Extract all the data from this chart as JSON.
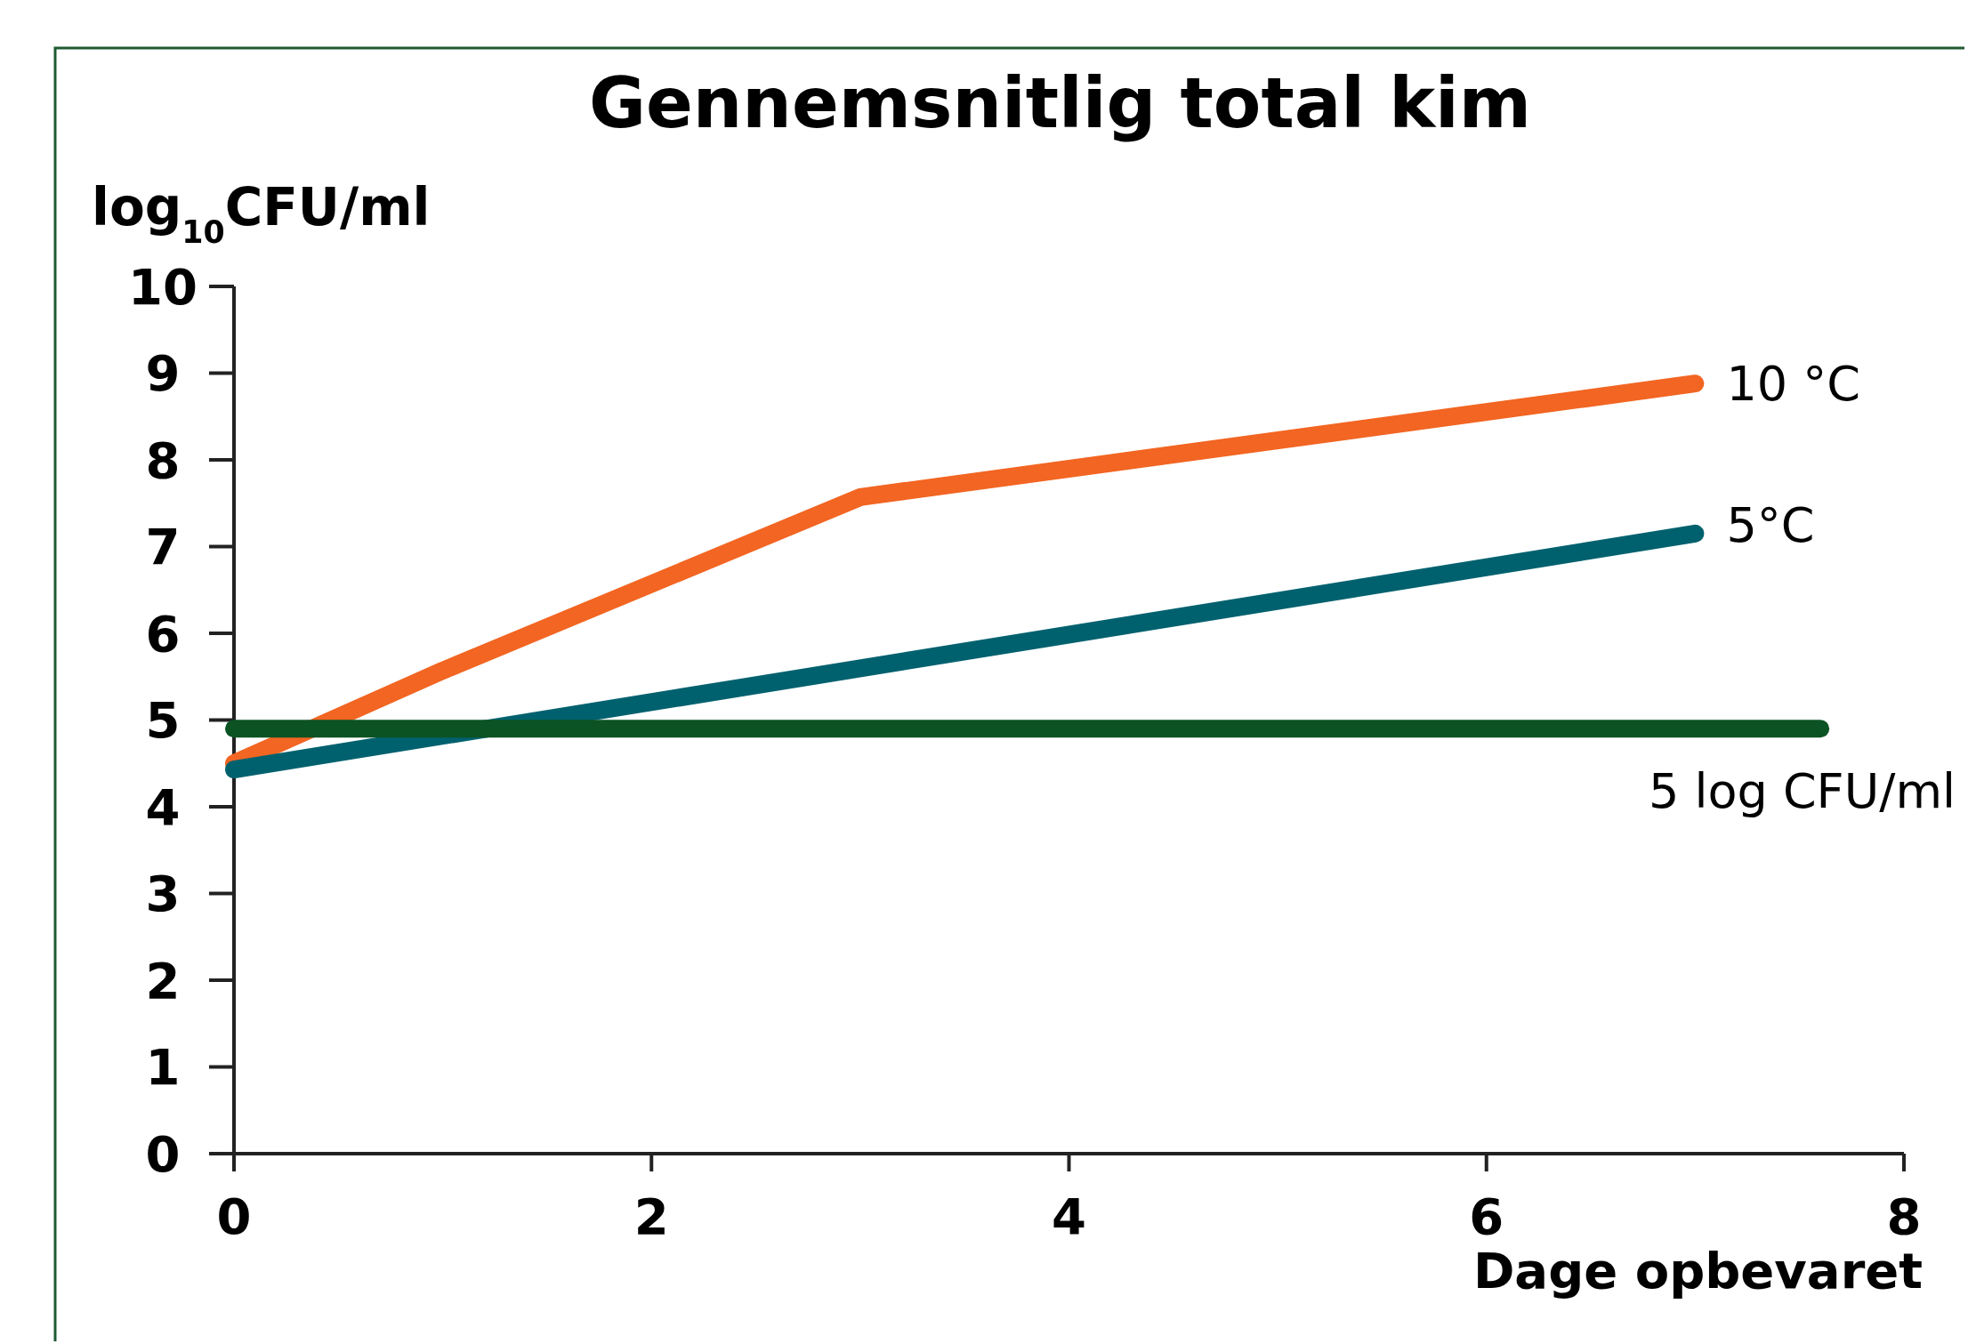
{
  "chart_data": {
    "type": "line",
    "title": "Gennemsnitlig total kim",
    "xlabel": "Dage opbevaret",
    "ylabel": "log$_{10}$CFU/ml",
    "xlim": [
      0,
      8
    ],
    "xticks": [
      0,
      2,
      4,
      6,
      8
    ],
    "ylim": [
      0,
      10
    ],
    "yticks": [
      0,
      1,
      2,
      3,
      4,
      5,
      6,
      7,
      8,
      9,
      10
    ],
    "grid": false,
    "marker": "none",
    "line_style": "solid",
    "series": [
      {
        "name": "10 °C",
        "color": "#f26522",
        "x": [
          0,
          1,
          3,
          7
        ],
        "values": [
          4.5,
          5.57,
          7.57,
          8.88
        ]
      },
      {
        "name": "5°C",
        "color": "#00616e",
        "x": [
          0,
          7
        ],
        "values": [
          4.43,
          7.15
        ]
      },
      {
        "name": "5 log CFU/ml",
        "color": "#0b5323",
        "x": [
          0,
          7.6
        ],
        "values": [
          4.9,
          4.9
        ]
      }
    ]
  }
}
